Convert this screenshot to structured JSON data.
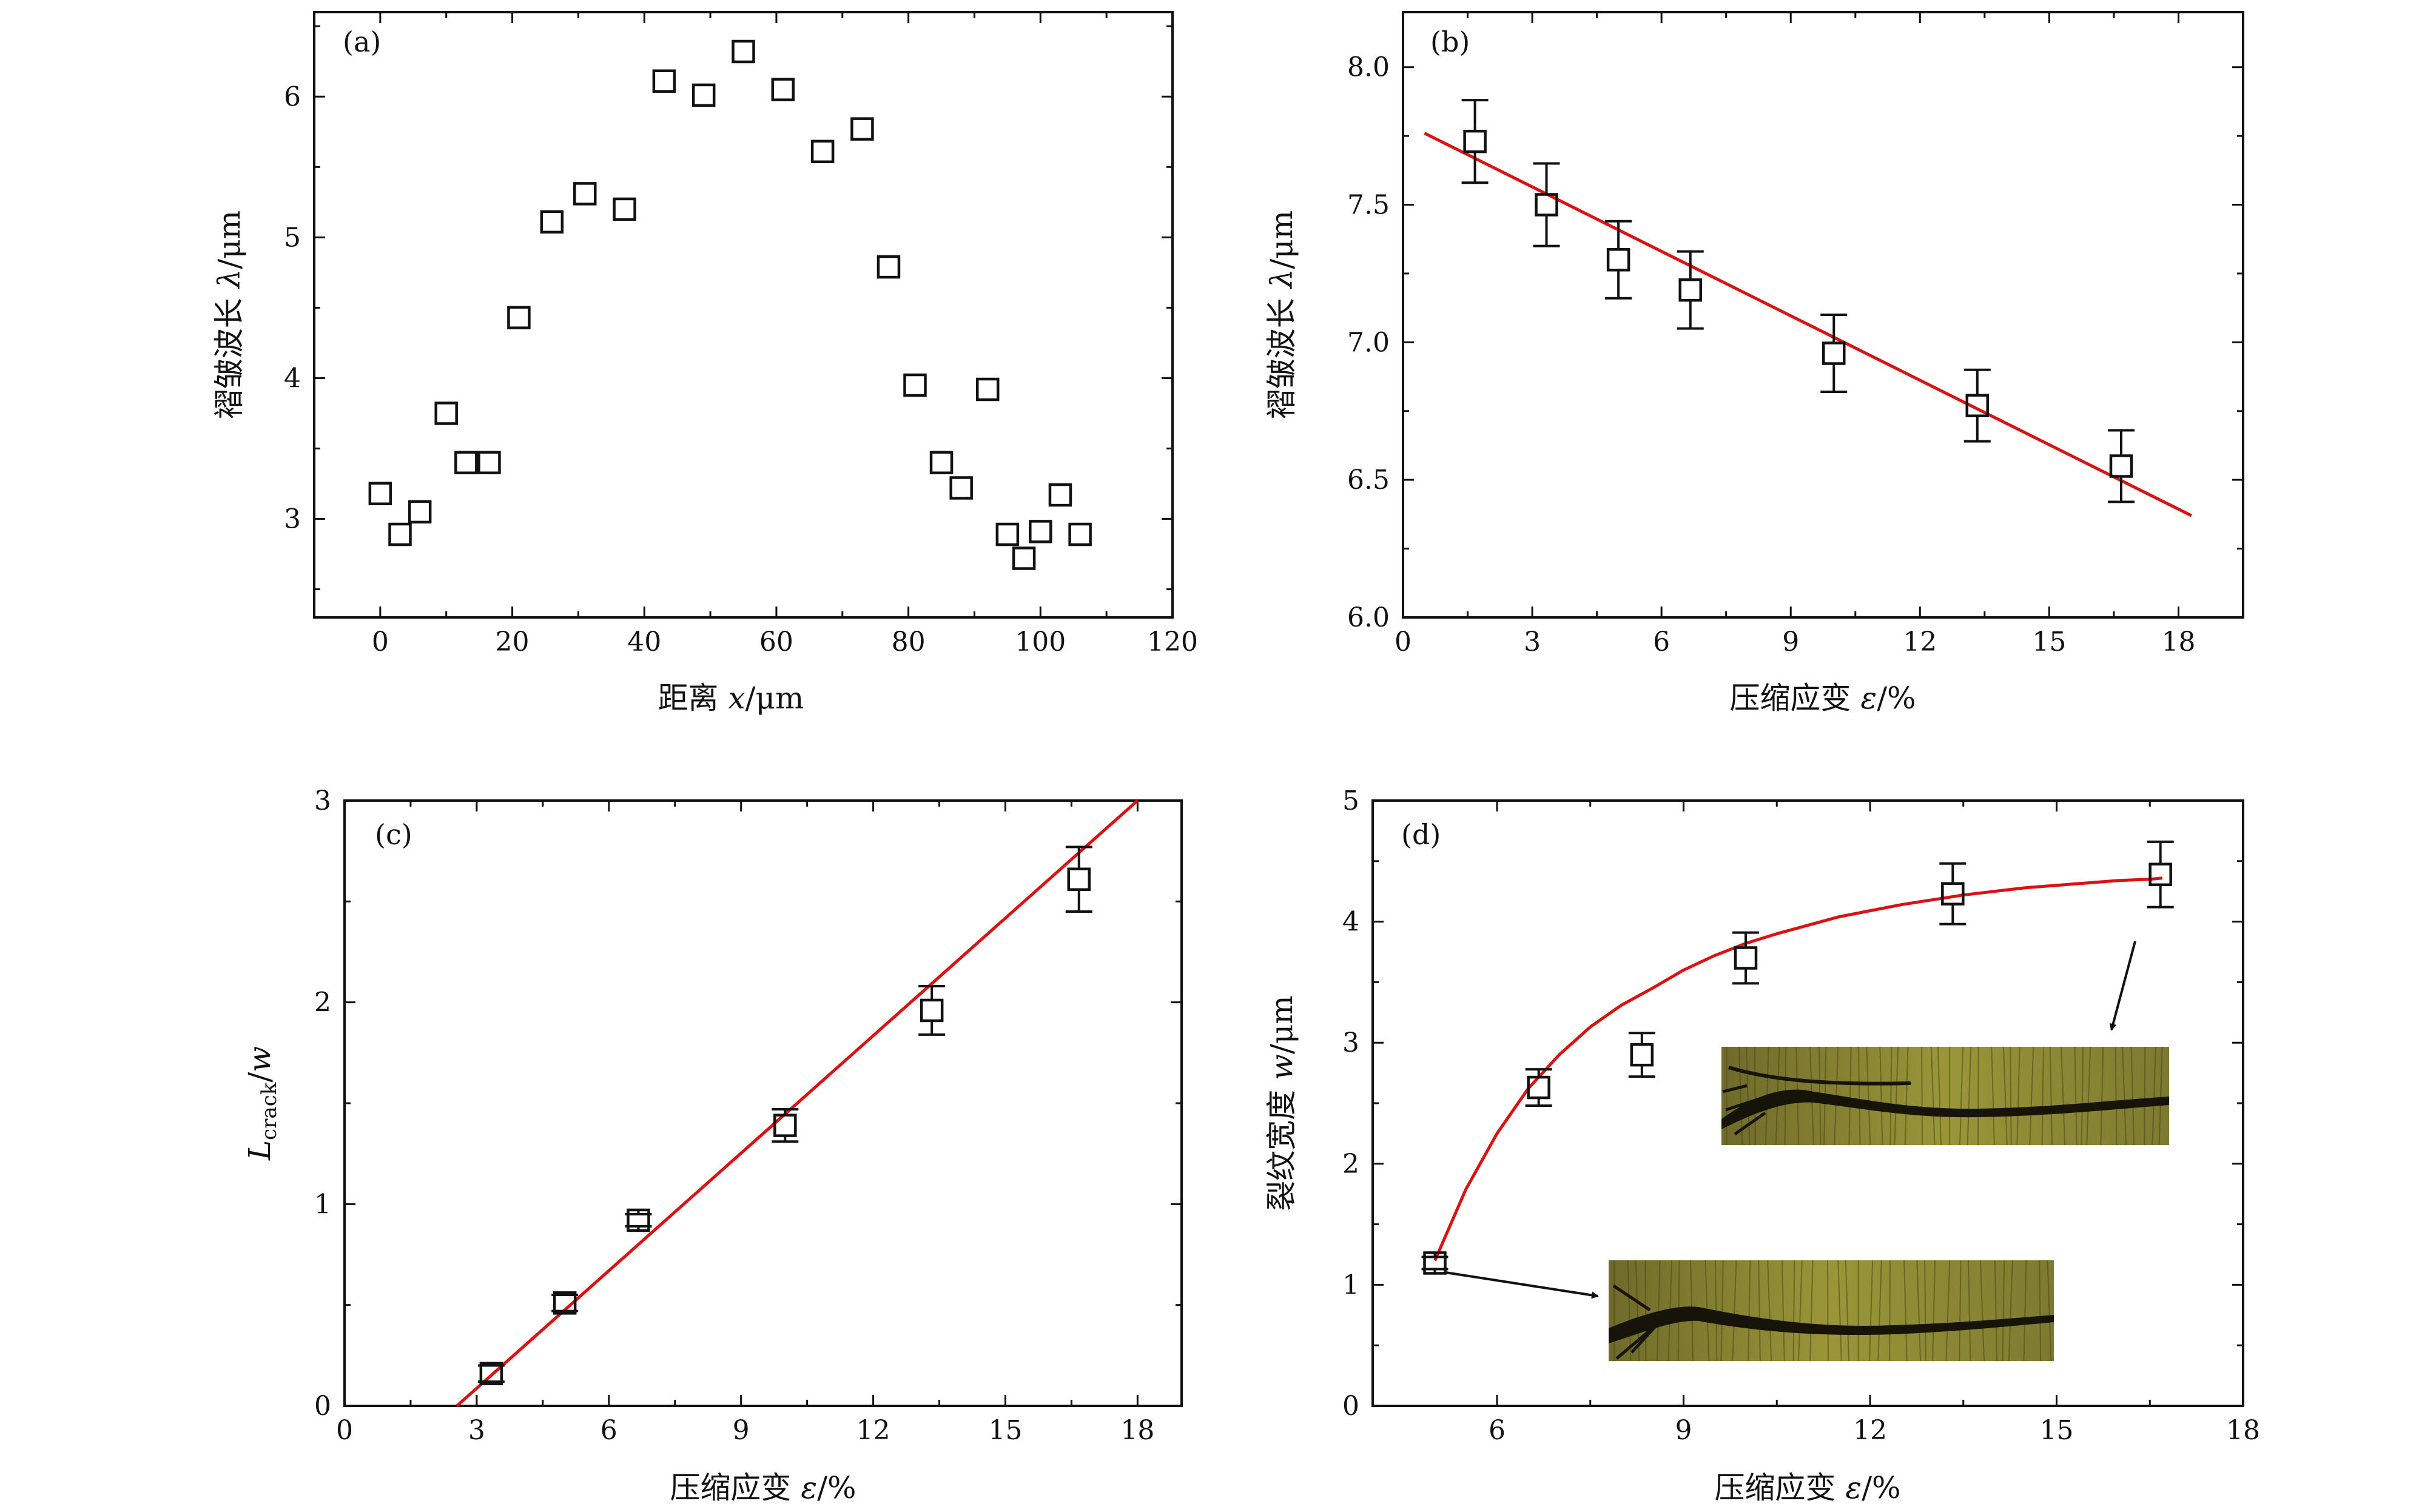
{
  "colors": {
    "marker": "#111111",
    "fit": "#dd1111",
    "axis": "#111111",
    "micrograph_bg": "#8a8a2c",
    "micrograph_crack": "#161408"
  },
  "chart_data": [
    {
      "id": "a",
      "type": "scatter",
      "panel_label": "(a)",
      "xlabel": "距离 x/μm",
      "ylabel": "褶皱波长 λ/μm",
      "xlim": [
        -10,
        120
      ],
      "ylim": [
        2.3,
        6.6
      ],
      "xticks": [
        0,
        20,
        40,
        60,
        80,
        100,
        120
      ],
      "yticks": [
        3,
        4,
        5,
        6
      ],
      "series": [
        {
          "x": [
            0,
            3,
            6,
            10,
            13,
            16.5,
            21,
            26,
            31,
            37,
            43,
            49,
            55,
            61,
            67,
            73,
            77,
            81,
            85,
            88,
            92,
            95,
            97.5,
            100,
            103,
            106
          ],
          "y": [
            3.18,
            2.89,
            3.05,
            3.75,
            3.4,
            3.4,
            4.43,
            5.11,
            5.31,
            5.2,
            6.11,
            6.01,
            6.32,
            6.05,
            5.61,
            5.77,
            4.79,
            3.95,
            3.4,
            3.22,
            3.92,
            2.89,
            2.72,
            2.91,
            3.17,
            2.89
          ]
        }
      ]
    },
    {
      "id": "b",
      "type": "scatter",
      "panel_label": "(b)",
      "xlabel": "压缩应变 ε/%",
      "ylabel": "褶皱波长 λ/μm",
      "xlim": [
        0,
        19.5
      ],
      "ylim": [
        6.0,
        8.2
      ],
      "xticks": [
        0,
        3,
        6,
        9,
        12,
        15,
        18
      ],
      "yticks": [
        6.0,
        6.5,
        7.0,
        7.5,
        8.0
      ],
      "series": [
        {
          "x": [
            1.67,
            3.33,
            5.0,
            6.67,
            10.0,
            13.33,
            16.67
          ],
          "y": [
            7.73,
            7.5,
            7.3,
            7.19,
            6.96,
            6.77,
            6.55
          ],
          "error": [
            0.15,
            0.15,
            0.14,
            0.14,
            0.14,
            0.13,
            0.13
          ]
        }
      ],
      "fit": {
        "x": [
          0.5,
          18.3
        ],
        "y": [
          7.76,
          6.37
        ]
      }
    },
    {
      "id": "c",
      "type": "scatter",
      "panel_label": "(c)",
      "xlabel": "压缩应变 ε/%",
      "ylabel": "L_crack/w",
      "xlim": [
        0,
        19
      ],
      "ylim": [
        0,
        3
      ],
      "xticks": [
        0,
        3,
        6,
        9,
        12,
        15,
        18
      ],
      "yticks": [
        0,
        1,
        2,
        3
      ],
      "series": [
        {
          "x": [
            3.33,
            5.0,
            6.67,
            10.0,
            13.33,
            16.67
          ],
          "y": [
            0.16,
            0.51,
            0.92,
            1.39,
            1.96,
            2.61
          ],
          "error": [
            0.04,
            0.04,
            0.03,
            0.08,
            0.12,
            0.16
          ]
        }
      ],
      "fit": {
        "x": [
          2.55,
          18.0
        ],
        "y": [
          0.0,
          3.0
        ]
      }
    },
    {
      "id": "d",
      "type": "scatter",
      "panel_label": "(d)",
      "xlabel": "压缩应变 ε/%",
      "ylabel": "裂纹宽度 w/μm",
      "xlim": [
        4.0,
        18.0
      ],
      "ylim": [
        0,
        5
      ],
      "xticks": [
        6,
        9,
        12,
        15,
        18
      ],
      "yticks": [
        0,
        1,
        2,
        3,
        4,
        5
      ],
      "series": [
        {
          "x": [
            5.0,
            6.67,
            8.33,
            10.0,
            13.33,
            16.67
          ],
          "y": [
            1.18,
            2.63,
            2.9,
            3.7,
            4.23,
            4.39
          ],
          "error": [
            0.05,
            0.15,
            0.18,
            0.21,
            0.25,
            0.27
          ]
        }
      ],
      "fit": {
        "x": [
          5.0,
          5.5,
          6.0,
          6.5,
          7.0,
          7.5,
          8.0,
          8.5,
          9.0,
          9.5,
          10.0,
          10.5,
          11.0,
          11.5,
          12.0,
          12.5,
          13.0,
          13.5,
          14.0,
          14.5,
          15.0,
          15.5,
          16.0,
          16.5,
          16.7
        ],
        "y": [
          1.2,
          1.79,
          2.25,
          2.62,
          2.9,
          3.13,
          3.31,
          3.45,
          3.6,
          3.72,
          3.82,
          3.9,
          3.97,
          4.04,
          4.09,
          4.14,
          4.18,
          4.22,
          4.25,
          4.28,
          4.3,
          4.32,
          4.34,
          4.35,
          4.36
        ]
      }
    }
  ]
}
